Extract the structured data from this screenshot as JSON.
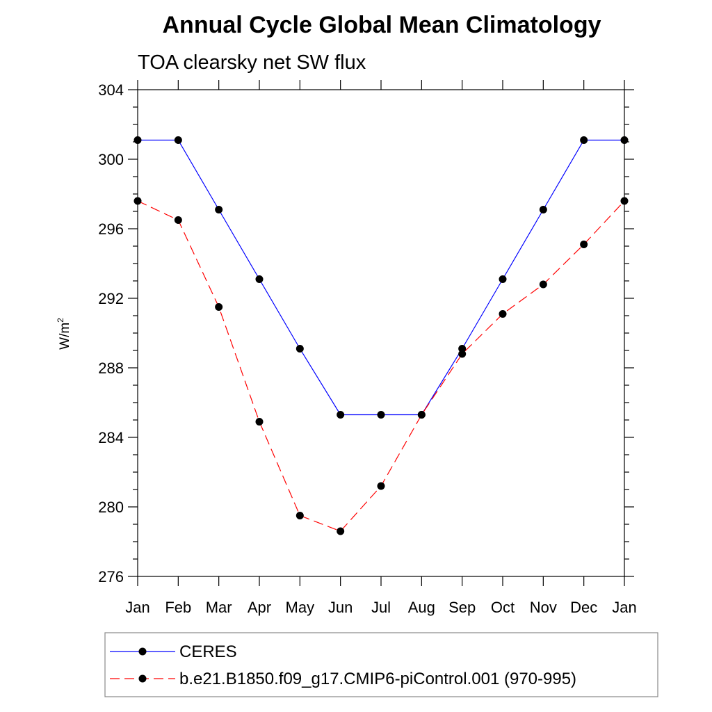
{
  "chart_data": {
    "type": "line",
    "title": "Annual Cycle Global Mean Climatology",
    "subtitle": "TOA clearsky net SW flux",
    "ylabel": "W/m",
    "ylabel_superscript": "2",
    "xlabel": "",
    "categories": [
      "Jan",
      "Feb",
      "Mar",
      "Apr",
      "May",
      "Jun",
      "Jul",
      "Aug",
      "Sep",
      "Oct",
      "Nov",
      "Dec",
      "Jan"
    ],
    "ylim": [
      276,
      304
    ],
    "yticks": [
      276,
      280,
      284,
      288,
      292,
      296,
      300,
      304
    ],
    "grid": false,
    "legend_position": "bottom",
    "series": [
      {
        "name": "CERES",
        "color": "#0000ff",
        "line_style": "solid",
        "values": [
          301.1,
          301.1,
          297.1,
          293.1,
          289.1,
          285.3,
          285.3,
          285.3,
          289.1,
          293.1,
          297.1,
          301.1,
          301.1
        ]
      },
      {
        "name": "b.e21.B1850.f09_g17.CMIP6-piControl.001 (970-995)",
        "color": "#ff0000",
        "line_style": "dashed",
        "values": [
          297.6,
          296.5,
          291.5,
          284.9,
          279.5,
          278.6,
          281.2,
          285.3,
          288.8,
          291.1,
          292.8,
          295.1,
          297.6
        ]
      }
    ]
  }
}
